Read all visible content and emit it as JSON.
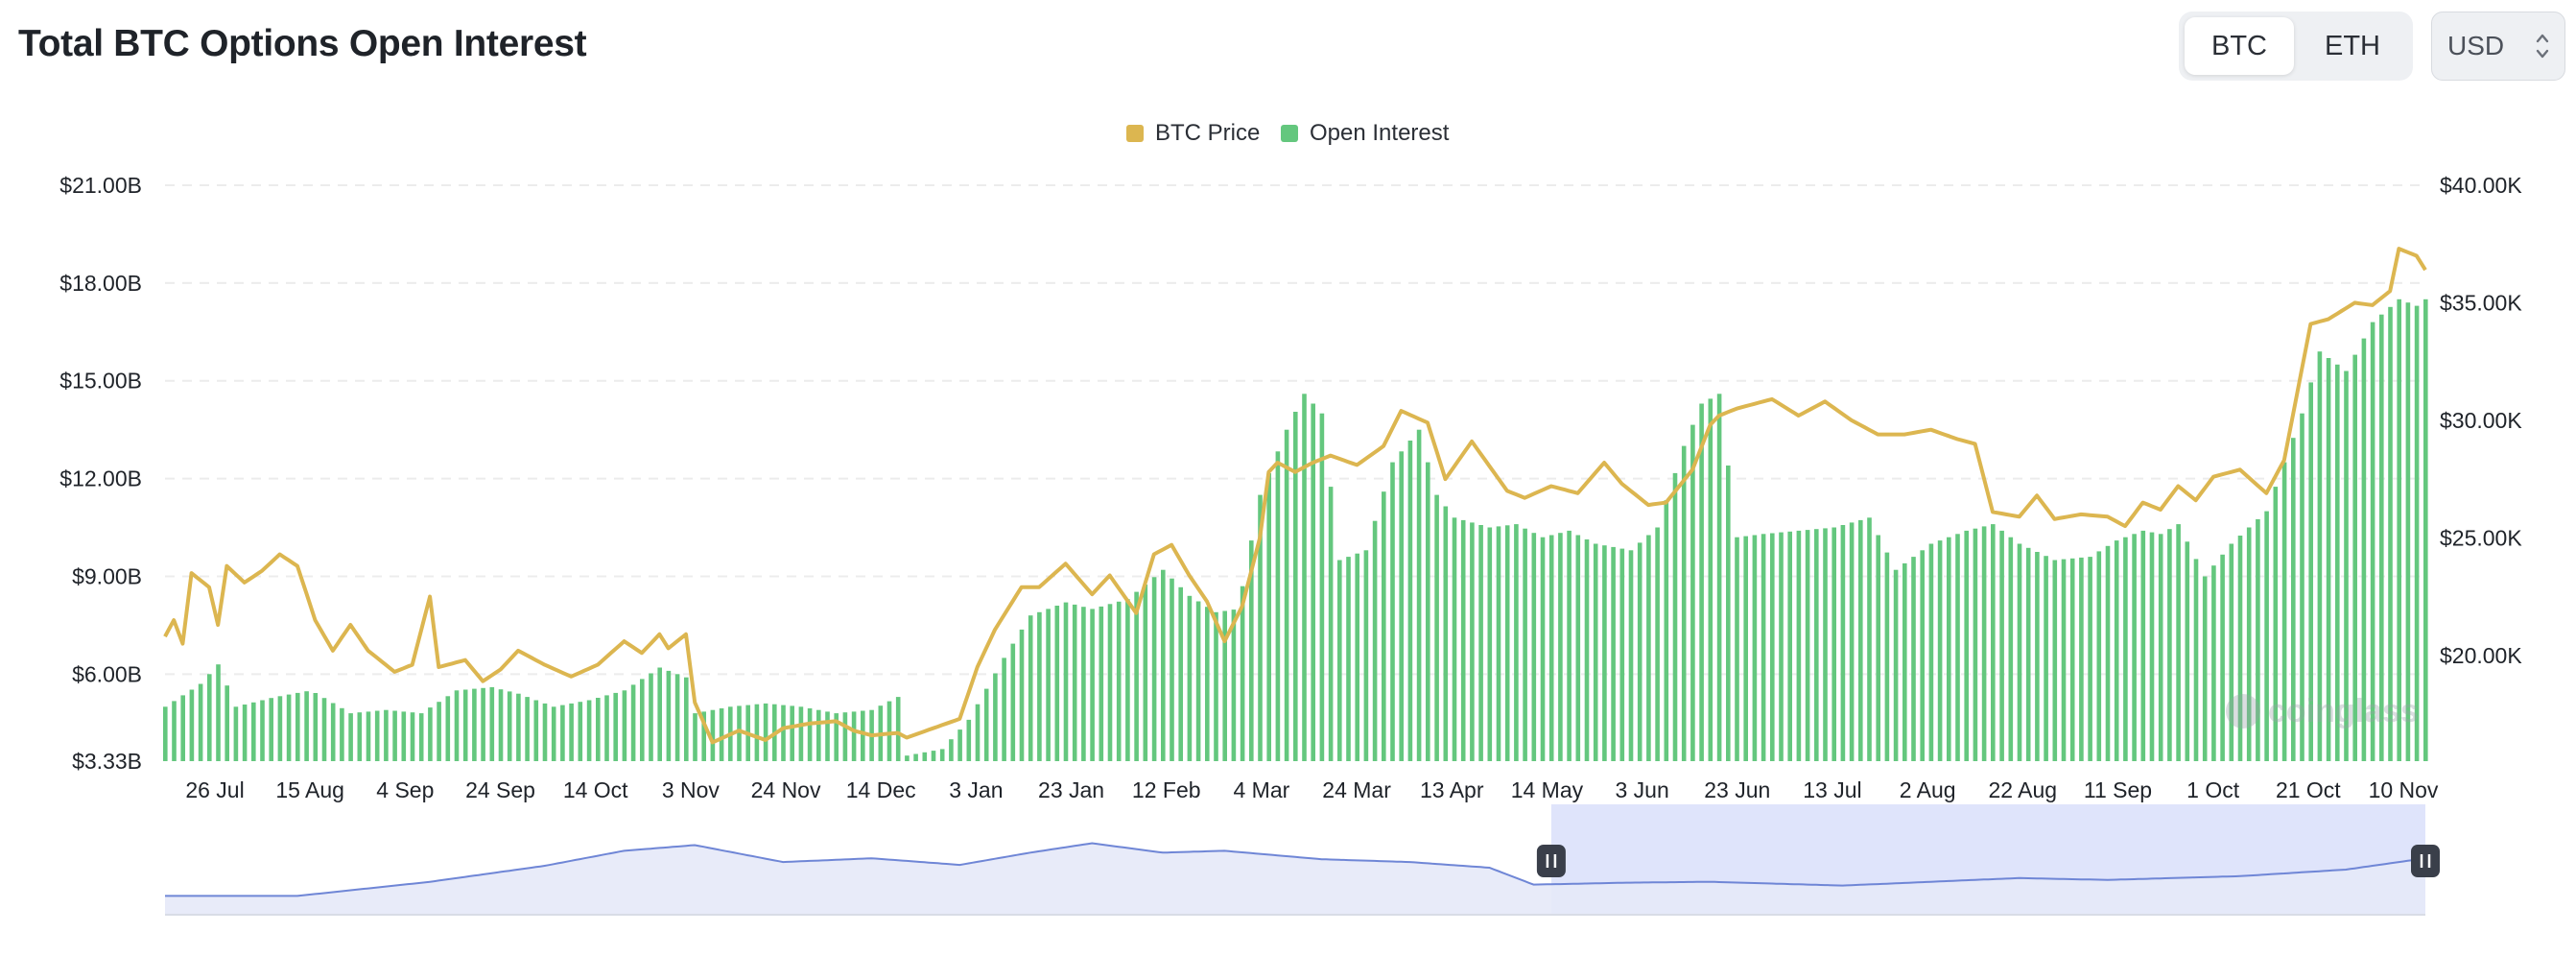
{
  "header": {
    "title": "Total BTC Options Open Interest",
    "assets": [
      "BTC",
      "ETH"
    ],
    "active_asset": "BTC",
    "currency": "USD"
  },
  "colors": {
    "price": "#dcb650",
    "open_interest": "#64c77e",
    "nav_line": "#6f86d6",
    "nav_fill": "#e5e9f8",
    "nav_select": "#dfe4fb",
    "grid": "#ececec"
  },
  "watermark": "coinglass",
  "chart_data": {
    "type": "bar",
    "legend": [
      "BTC Price",
      "Open Interest"
    ],
    "legend_position": "top-center",
    "x_tick_labels": [
      "26 Jul",
      "15 Aug",
      "4 Sep",
      "24 Sep",
      "14 Oct",
      "3 Nov",
      "24 Nov",
      "14 Dec",
      "3 Jan",
      "23 Jan",
      "12 Feb",
      "4 Mar",
      "24 Mar",
      "13 Apr",
      "14 May",
      "3 Jun",
      "23 Jun",
      "13 Jul",
      "2 Aug",
      "22 Aug",
      "11 Sep",
      "1 Oct",
      "21 Oct",
      "10 Nov"
    ],
    "y_left_ticks": [
      "$3.33B",
      "$6.00B",
      "$9.00B",
      "$12.00B",
      "$15.00B",
      "$18.00B",
      "$21.00B"
    ],
    "y_right_ticks": [
      "$20.00K",
      "$25.00K",
      "$30.00K",
      "$35.00K",
      "$40.00K"
    ],
    "y_left_range": [
      3.33,
      21.0
    ],
    "y_right_range": [
      15.5,
      40.0
    ],
    "grid": true,
    "series": [
      {
        "name": "Open Interest",
        "axis": "left",
        "unit": "USD billions",
        "knots": [
          [
            0,
            5.0
          ],
          [
            8,
            5.7
          ],
          [
            12,
            6.3
          ],
          [
            16,
            5.0
          ],
          [
            25,
            5.3
          ],
          [
            33,
            5.5
          ],
          [
            42,
            4.8
          ],
          [
            50,
            4.9
          ],
          [
            58,
            4.8
          ],
          [
            66,
            5.5
          ],
          [
            74,
            5.6
          ],
          [
            80,
            5.4
          ],
          [
            88,
            5.0
          ],
          [
            96,
            5.2
          ],
          [
            104,
            5.5
          ],
          [
            112,
            6.2
          ],
          [
            118,
            5.9
          ],
          [
            120,
            4.8
          ],
          [
            128,
            5.0
          ],
          [
            136,
            5.1
          ],
          [
            144,
            5.0
          ],
          [
            152,
            4.8
          ],
          [
            160,
            4.9
          ],
          [
            166,
            5.3
          ],
          [
            168,
            3.5
          ],
          [
            176,
            3.7
          ],
          [
            182,
            4.6
          ],
          [
            190,
            6.5
          ],
          [
            196,
            7.8
          ],
          [
            204,
            8.2
          ],
          [
            210,
            8.0
          ],
          [
            218,
            8.3
          ],
          [
            226,
            9.2
          ],
          [
            232,
            8.4
          ],
          [
            238,
            7.9
          ],
          [
            243,
            8.0
          ],
          [
            248,
            11.5
          ],
          [
            254,
            13.5
          ],
          [
            258,
            14.6
          ],
          [
            262,
            14.0
          ],
          [
            266,
            9.5
          ],
          [
            272,
            9.8
          ],
          [
            278,
            12.5
          ],
          [
            284,
            13.5
          ],
          [
            288,
            11.5
          ],
          [
            292,
            10.8
          ],
          [
            300,
            10.5
          ],
          [
            306,
            10.6
          ],
          [
            312,
            10.2
          ],
          [
            318,
            10.4
          ],
          [
            324,
            10.0
          ],
          [
            332,
            9.8
          ],
          [
            338,
            10.5
          ],
          [
            344,
            13.0
          ],
          [
            348,
            14.3
          ],
          [
            352,
            14.6
          ],
          [
            356,
            10.2
          ],
          [
            362,
            10.3
          ],
          [
            370,
            10.4
          ],
          [
            378,
            10.5
          ],
          [
            386,
            10.8
          ],
          [
            392,
            9.2
          ],
          [
            400,
            10.0
          ],
          [
            408,
            10.4
          ],
          [
            414,
            10.6
          ],
          [
            420,
            10.0
          ],
          [
            428,
            9.5
          ],
          [
            436,
            9.6
          ],
          [
            442,
            10.1
          ],
          [
            448,
            10.4
          ],
          [
            452,
            10.3
          ],
          [
            456,
            10.6
          ],
          [
            462,
            9.0
          ],
          [
            468,
            10.0
          ],
          [
            476,
            11.0
          ],
          [
            484,
            14.0
          ],
          [
            488,
            15.9
          ],
          [
            494,
            15.3
          ],
          [
            500,
            16.8
          ],
          [
            506,
            17.5
          ],
          [
            510,
            17.3
          ],
          [
            512,
            17.5
          ]
        ]
      },
      {
        "name": "BTC Price",
        "axis": "right",
        "unit": "USD thousands",
        "knots": [
          [
            0,
            20.8
          ],
          [
            2,
            21.5
          ],
          [
            4,
            20.5
          ],
          [
            6,
            23.5
          ],
          [
            10,
            22.9
          ],
          [
            12,
            21.3
          ],
          [
            14,
            23.8
          ],
          [
            18,
            23.1
          ],
          [
            22,
            23.6
          ],
          [
            26,
            24.3
          ],
          [
            30,
            23.8
          ],
          [
            34,
            21.5
          ],
          [
            38,
            20.2
          ],
          [
            42,
            21.3
          ],
          [
            46,
            20.2
          ],
          [
            52,
            19.3
          ],
          [
            56,
            19.6
          ],
          [
            60,
            22.5
          ],
          [
            62,
            19.5
          ],
          [
            68,
            19.8
          ],
          [
            72,
            18.9
          ],
          [
            76,
            19.4
          ],
          [
            80,
            20.2
          ],
          [
            86,
            19.6
          ],
          [
            92,
            19.1
          ],
          [
            98,
            19.6
          ],
          [
            104,
            20.6
          ],
          [
            108,
            20.1
          ],
          [
            112,
            20.9
          ],
          [
            114,
            20.3
          ],
          [
            118,
            20.9
          ],
          [
            120,
            18.0
          ],
          [
            124,
            16.3
          ],
          [
            130,
            16.8
          ],
          [
            136,
            16.4
          ],
          [
            140,
            16.9
          ],
          [
            146,
            17.1
          ],
          [
            152,
            17.2
          ],
          [
            156,
            16.8
          ],
          [
            160,
            16.6
          ],
          [
            166,
            16.7
          ],
          [
            168,
            16.5
          ],
          [
            174,
            16.9
          ],
          [
            180,
            17.3
          ],
          [
            184,
            19.5
          ],
          [
            188,
            21.1
          ],
          [
            194,
            22.9
          ],
          [
            198,
            22.9
          ],
          [
            204,
            23.9
          ],
          [
            210,
            22.6
          ],
          [
            214,
            23.4
          ],
          [
            220,
            21.8
          ],
          [
            224,
            24.3
          ],
          [
            228,
            24.7
          ],
          [
            232,
            23.4
          ],
          [
            236,
            22.3
          ],
          [
            240,
            20.6
          ],
          [
            244,
            22.1
          ],
          [
            248,
            25.0
          ],
          [
            250,
            27.8
          ],
          [
            252,
            28.2
          ],
          [
            256,
            27.8
          ],
          [
            260,
            28.2
          ],
          [
            264,
            28.5
          ],
          [
            270,
            28.1
          ],
          [
            276,
            28.9
          ],
          [
            280,
            30.4
          ],
          [
            286,
            29.9
          ],
          [
            290,
            27.5
          ],
          [
            296,
            29.1
          ],
          [
            304,
            27.0
          ],
          [
            308,
            26.7
          ],
          [
            314,
            27.2
          ],
          [
            320,
            26.9
          ],
          [
            326,
            28.2
          ],
          [
            330,
            27.3
          ],
          [
            336,
            26.4
          ],
          [
            340,
            26.5
          ],
          [
            346,
            27.9
          ],
          [
            350,
            29.8
          ],
          [
            352,
            30.2
          ],
          [
            356,
            30.5
          ],
          [
            364,
            30.9
          ],
          [
            370,
            30.2
          ],
          [
            376,
            30.8
          ],
          [
            382,
            30.0
          ],
          [
            388,
            29.4
          ],
          [
            394,
            29.4
          ],
          [
            400,
            29.6
          ],
          [
            406,
            29.2
          ],
          [
            410,
            29.0
          ],
          [
            414,
            26.1
          ],
          [
            420,
            25.9
          ],
          [
            424,
            26.8
          ],
          [
            428,
            25.8
          ],
          [
            434,
            26.0
          ],
          [
            440,
            25.9
          ],
          [
            444,
            25.5
          ],
          [
            448,
            26.5
          ],
          [
            452,
            26.2
          ],
          [
            456,
            27.2
          ],
          [
            460,
            26.6
          ],
          [
            464,
            27.6
          ],
          [
            470,
            27.9
          ],
          [
            476,
            26.9
          ],
          [
            480,
            28.3
          ],
          [
            486,
            34.1
          ],
          [
            490,
            34.3
          ],
          [
            496,
            35.0
          ],
          [
            500,
            34.9
          ],
          [
            504,
            35.5
          ],
          [
            506,
            37.3
          ],
          [
            510,
            37.0
          ],
          [
            512,
            36.4
          ]
        ]
      }
    ],
    "navigator": {
      "knots": [
        [
          0,
          2.0
        ],
        [
          30,
          2.0
        ],
        [
          60,
          3.5
        ],
        [
          86,
          5.2
        ],
        [
          104,
          6.8
        ],
        [
          120,
          7.4
        ],
        [
          140,
          5.6
        ],
        [
          160,
          6.0
        ],
        [
          180,
          5.3
        ],
        [
          196,
          6.6
        ],
        [
          210,
          7.6
        ],
        [
          226,
          6.6
        ],
        [
          240,
          6.8
        ],
        [
          262,
          5.9
        ],
        [
          282,
          5.6
        ],
        [
          300,
          5.0
        ],
        [
          310,
          3.2
        ],
        [
          330,
          3.4
        ],
        [
          350,
          3.5
        ],
        [
          380,
          3.1
        ],
        [
          400,
          3.5
        ],
        [
          420,
          3.9
        ],
        [
          440,
          3.7
        ],
        [
          470,
          4.1
        ],
        [
          494,
          4.8
        ],
        [
          512,
          6.0
        ]
      ],
      "window_start": 314,
      "window_end": 512
    }
  }
}
